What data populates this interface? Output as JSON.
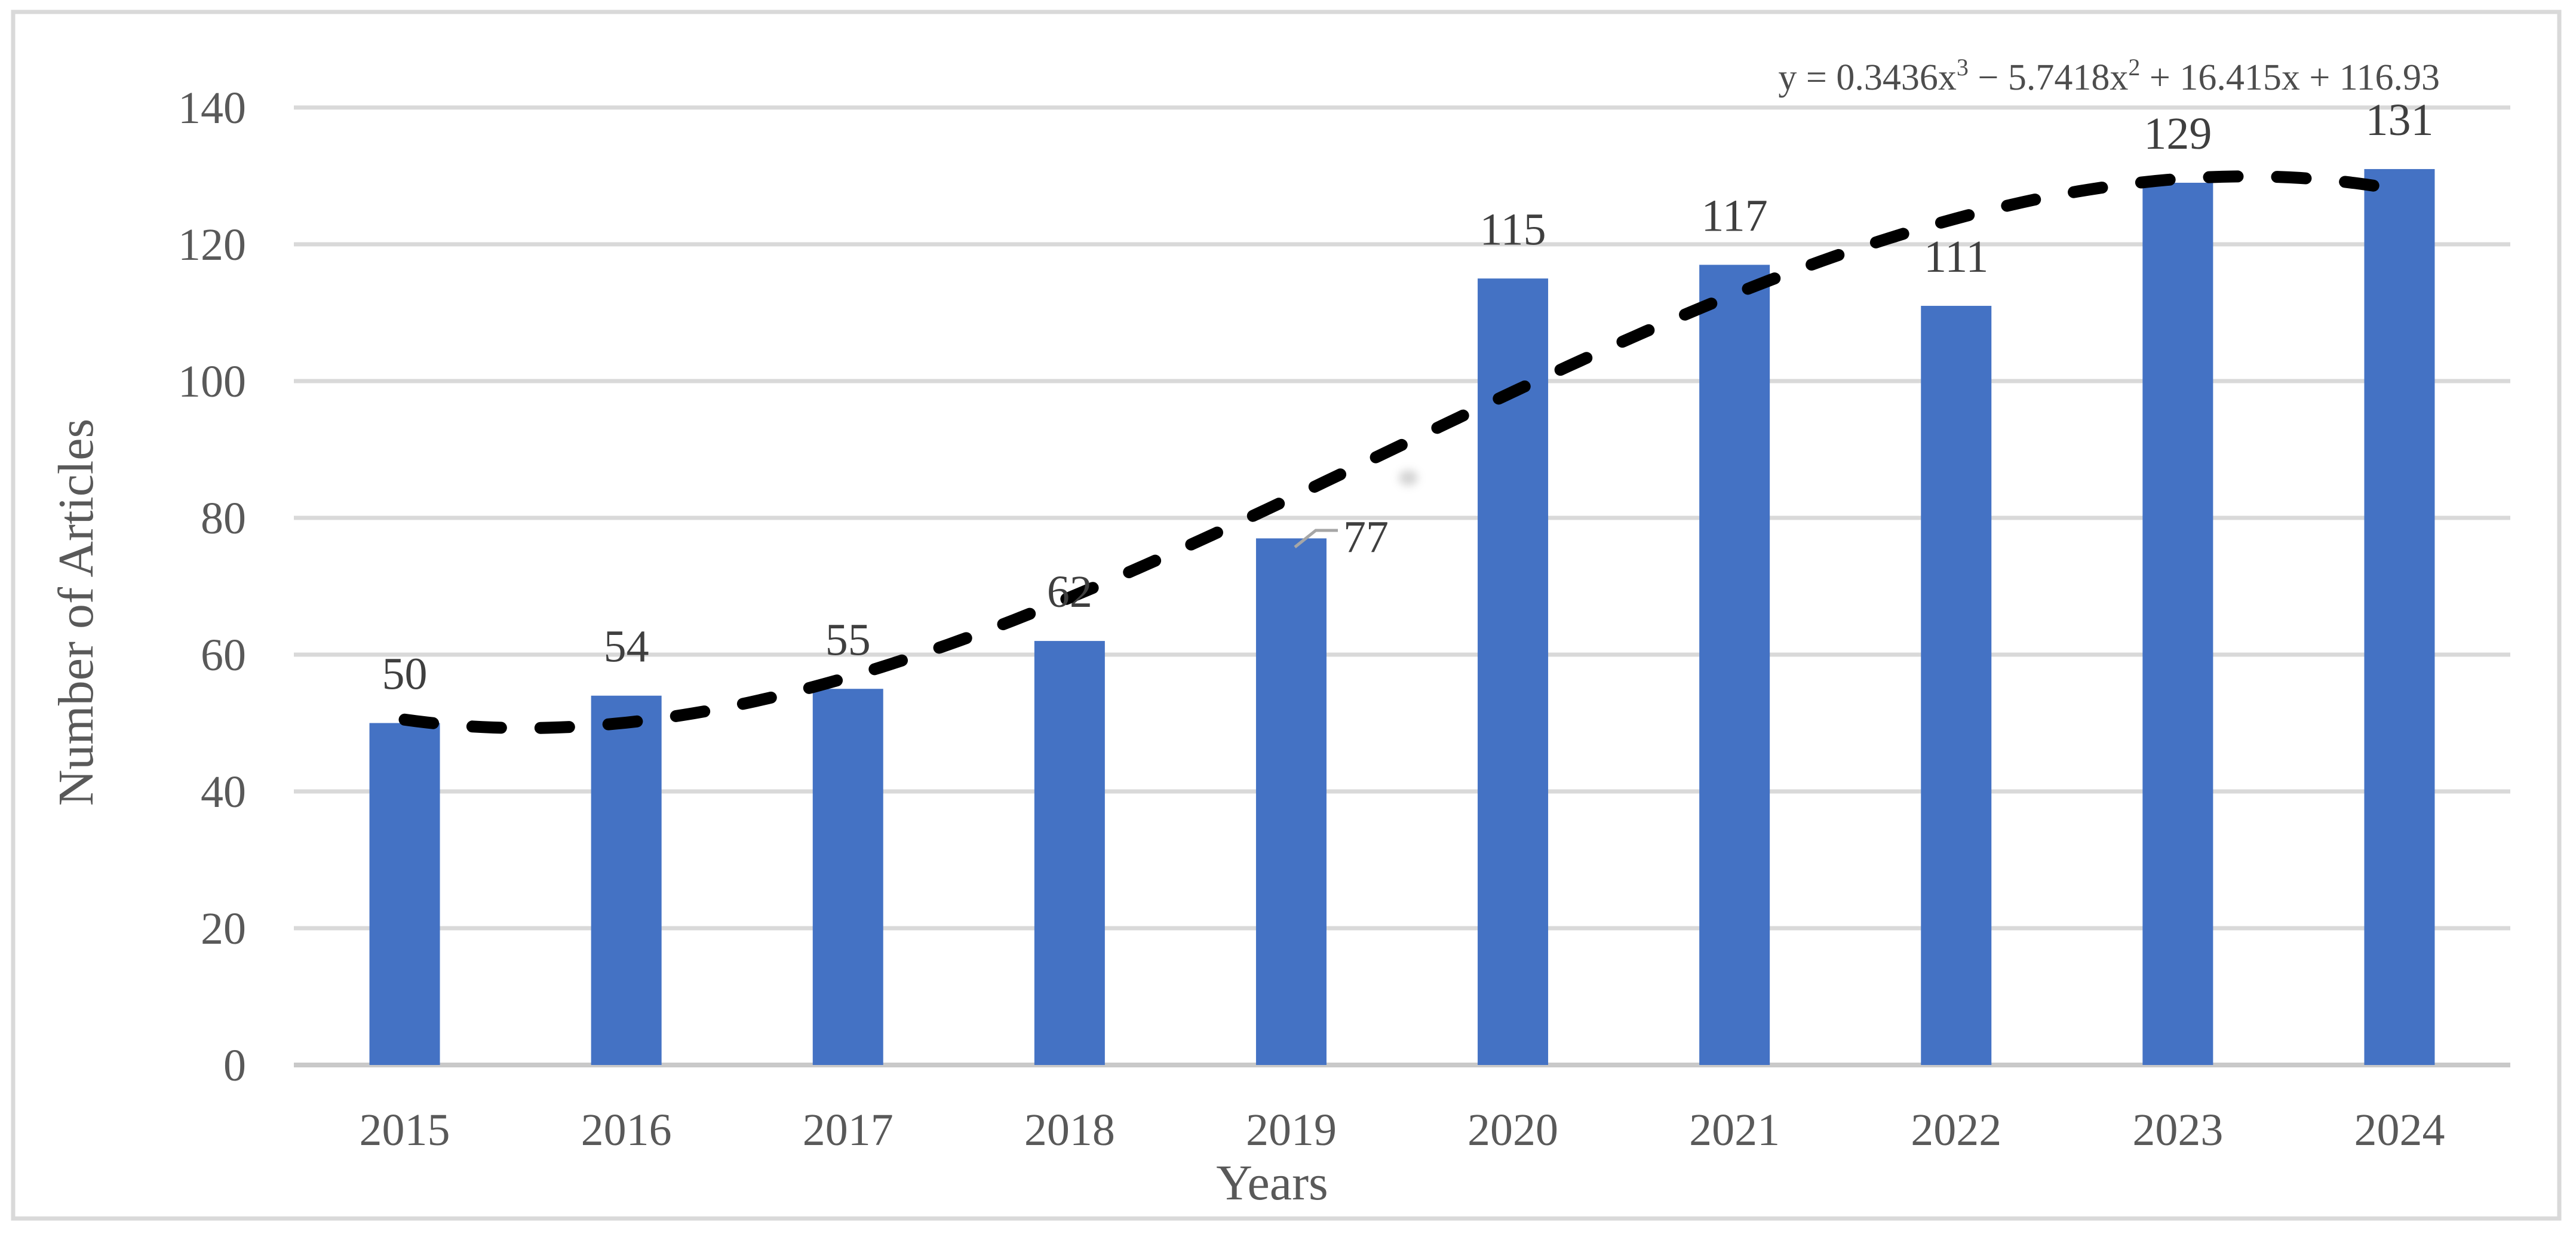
{
  "chart_data": {
    "type": "bar",
    "title": "",
    "categories": [
      "2015",
      "2016",
      "2017",
      "2018",
      "2019",
      "2020",
      "2021",
      "2022",
      "2023",
      "2024"
    ],
    "values": [
      50,
      54,
      55,
      62,
      77,
      115,
      117,
      111,
      129,
      131
    ],
    "xlabel": "Years",
    "ylabel": "Number of Articles",
    "ylim": [
      0,
      140
    ],
    "yticks": [
      0,
      20,
      40,
      60,
      80,
      100,
      120,
      140
    ],
    "grid": "horizontal",
    "legend": "none",
    "bar_color": "#4472C4",
    "gridline_color": "#d9d9d9",
    "tick_label_color": "#595959",
    "data_label_color": "#3f3f3f",
    "trendline": {
      "type": "polynomial",
      "order": 3,
      "color": "#000000",
      "dashed": true,
      "equation": "y = 0.3436x³ − 5.7418x² + 16.415x + 116.93",
      "equation_parts": {
        "lead": "y = 0.3436x",
        "exp1": "3",
        "mid": " − 5.7418x",
        "exp2": "2",
        "tail": " + 16.415x + 116.93"
      },
      "coefficients": {
        "x3": 0.3436,
        "x2": -5.7418,
        "x1": 16.415,
        "x0": 116.93
      },
      "x_direction": "reversed"
    },
    "label_overrides": {
      "2019": {
        "dx": 125,
        "dy": 80,
        "leader": true
      }
    }
  }
}
